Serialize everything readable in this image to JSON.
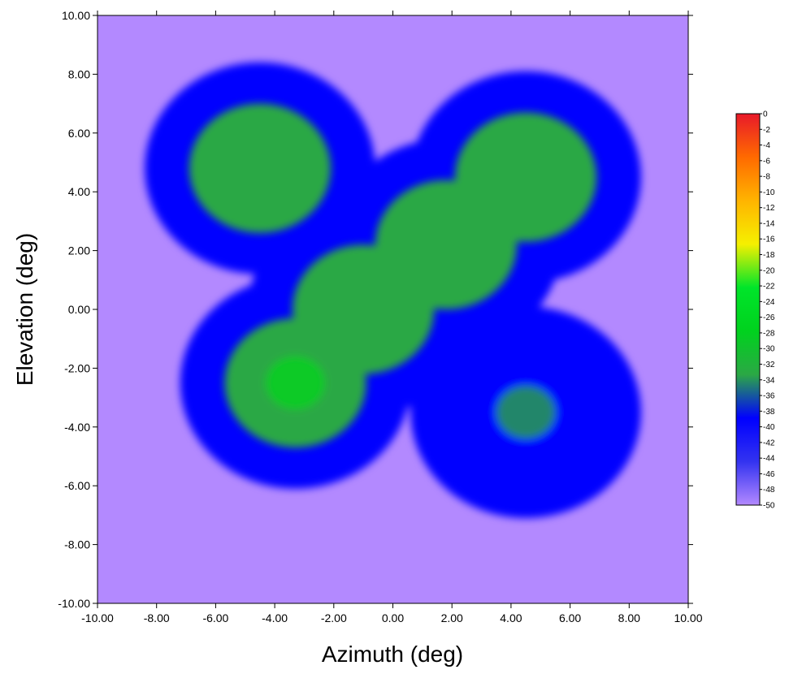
{
  "chart_data": {
    "type": "heatmap",
    "title": "",
    "xlabel": "Azimuth (deg)",
    "ylabel": "Elevation (deg)",
    "xlim": [
      -10,
      10
    ],
    "ylim": [
      -10,
      10
    ],
    "x_ticks": [
      "-10.00",
      "-8.00",
      "-6.00",
      "-4.00",
      "-2.00",
      "0.00",
      "2.00",
      "4.00",
      "6.00",
      "8.00",
      "10.00"
    ],
    "y_ticks": [
      "10.00",
      "8.00",
      "6.00",
      "4.00",
      "2.00",
      "0.00",
      "-2.00",
      "-4.00",
      "-6.00",
      "-8.00",
      "-10.00"
    ],
    "z_range": [
      -50,
      0
    ],
    "colorbar": {
      "labels": [
        "0",
        "-2",
        "-4",
        "-6",
        "-8",
        "-10",
        "-12",
        "-14",
        "-16",
        "-18",
        "-20",
        "-22",
        "-24",
        "-26",
        "-28",
        "-30",
        "-32",
        "-34",
        "-36",
        "-38",
        "-40",
        "-42",
        "-44",
        "-46",
        "-48",
        "-50"
      ],
      "colors": [
        "#e8192a",
        "#ff6a00",
        "#ffb400",
        "#f5f000",
        "#00e52a",
        "#00d21e",
        "#2ba845",
        "#0000ff",
        "#3333f0",
        "#b389ff"
      ]
    },
    "grid": false,
    "legend": "colorbar right",
    "lobes": [
      {
        "x": -4.5,
        "y": 4.8,
        "peak": -31
      },
      {
        "x": 4.5,
        "y": 4.5,
        "peak": -32
      },
      {
        "x": 1.8,
        "y": 2.2,
        "peak": -31
      },
      {
        "x": -1.0,
        "y": 0.0,
        "peak": -32
      },
      {
        "x": -3.3,
        "y": -2.5,
        "peak": -30
      },
      {
        "x": 4.5,
        "y": -3.5,
        "peak": -33
      }
    ],
    "background_level": -48
  }
}
